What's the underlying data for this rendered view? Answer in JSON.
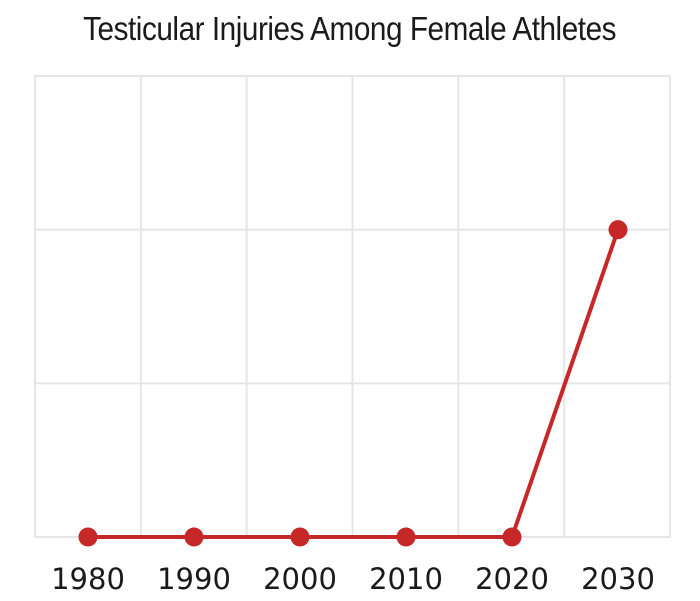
{
  "chart_data": {
    "type": "line",
    "title": "Testicular Injuries Among Female Athletes",
    "xlabel": "",
    "ylabel": "",
    "x": [
      "1980",
      "1990",
      "2000",
      "2010",
      "2020",
      "2030"
    ],
    "series": [
      {
        "values": [
          0,
          0,
          0,
          0,
          0,
          2
        ]
      }
    ],
    "ylim": [
      0,
      3
    ],
    "grid": true,
    "show_y_ticks": false,
    "colors": {
      "line": "#c62828",
      "grid": "#e6e6e6",
      "frame": "#e6e6e6"
    }
  }
}
